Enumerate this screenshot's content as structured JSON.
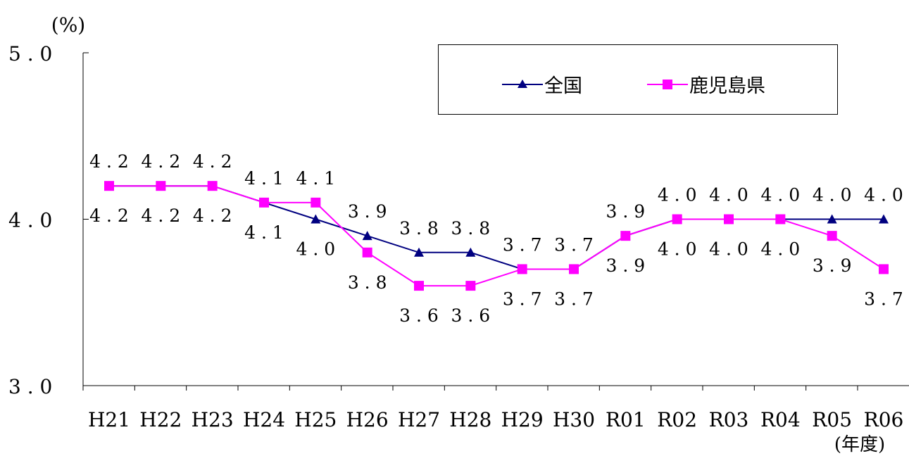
{
  "chart_data": {
    "type": "line",
    "y_unit": "(%)",
    "x_unit": "(年度)",
    "categories": [
      "H21",
      "H22",
      "H23",
      "H24",
      "H25",
      "H26",
      "H27",
      "H28",
      "H29",
      "H30",
      "R01",
      "R02",
      "R03",
      "R04",
      "R05",
      "R06"
    ],
    "ylim": [
      3.0,
      5.0
    ],
    "yticks": [
      "3.0",
      "4.0",
      "5.0"
    ],
    "grid": false,
    "legend_position": "top-right",
    "series": [
      {
        "name": "全国",
        "color": "#000080",
        "marker": "triangle",
        "values": [
          4.2,
          4.2,
          4.2,
          4.1,
          4.0,
          3.9,
          3.8,
          3.8,
          3.7,
          3.7,
          3.9,
          4.0,
          4.0,
          4.0,
          4.0,
          4.0
        ],
        "labels": [
          "4.2",
          "4.2",
          "4.2",
          "4.1",
          "4.0",
          "3.9",
          "3.8",
          "3.8",
          "3.7",
          "3.7",
          "3.9",
          "4.0",
          "4.0",
          "4.0",
          "4.0",
          "4.0"
        ]
      },
      {
        "name": "鹿児島県",
        "color": "#FF00FF",
        "marker": "square",
        "values": [
          4.2,
          4.2,
          4.2,
          4.1,
          4.1,
          3.8,
          3.6,
          3.6,
          3.7,
          3.7,
          3.9,
          4.0,
          4.0,
          4.0,
          3.9,
          3.7
        ],
        "labels": [
          "4.2",
          "4.2",
          "4.2",
          "4.1",
          "4.1",
          "3.8",
          "3.6",
          "3.6",
          "3.7",
          "3.7",
          "3.9",
          "4.0",
          "4.0",
          "4.0",
          "3.9",
          "3.7"
        ]
      }
    ]
  }
}
